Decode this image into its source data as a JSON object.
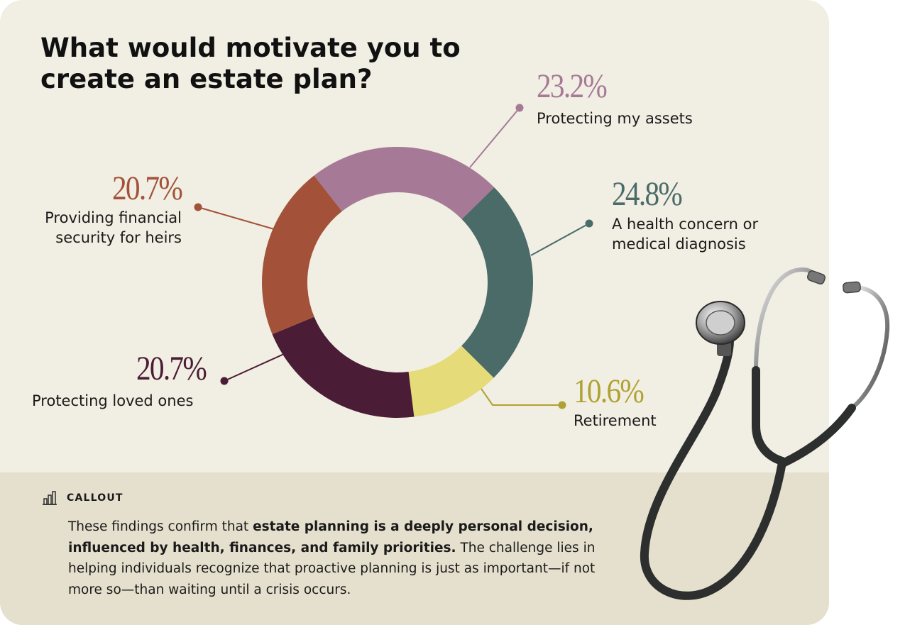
{
  "title": "What would motivate you to create an estate plan?",
  "chart_data": {
    "type": "pie",
    "title": "What would motivate you to create an estate plan?",
    "slices": [
      {
        "label": "Protecting my assets",
        "value": 23.2,
        "display": "23.2%",
        "color": "#a67a96"
      },
      {
        "label": "A health concern or medical diagnosis",
        "value": 24.8,
        "display": "24.8%",
        "color": "#4b6b68"
      },
      {
        "label": "Retirement",
        "value": 10.6,
        "display": "10.6%",
        "color": "#e6db79"
      },
      {
        "label": "Protecting loved ones",
        "value": 20.7,
        "display": "20.7%",
        "color": "#4b1c35"
      },
      {
        "label": "Providing financial security for heirs",
        "value": 20.7,
        "display": "20.7%",
        "color": "#a35239"
      }
    ],
    "label_colors": {
      "Protecting my assets": "#a67a96",
      "A health concern or medical diagnosis": "#4b6b68",
      "Retirement": "#b0a232",
      "Protecting loved ones": "#4b1c35",
      "Providing financial security for heirs": "#a35239"
    },
    "donut": true,
    "legend": "none"
  },
  "labels": {
    "assets": {
      "pct": "23.2%",
      "line1": "Protecting my assets"
    },
    "health": {
      "pct": "24.8%",
      "line1": "A health concern or",
      "line2": "medical diagnosis"
    },
    "retirement": {
      "pct": "10.6%",
      "line1": "Retirement"
    },
    "loved": {
      "pct": "20.7%",
      "line1": "Protecting loved ones"
    },
    "heirs": {
      "pct": "20.7%",
      "line1": "Providing financial",
      "line2": "security for heirs"
    }
  },
  "callout": {
    "icon": "bar-chart-icon",
    "title": "CALLOUT",
    "text_before": "These findings confirm that ",
    "text_bold": "estate planning is a deeply personal decision, influenced by health, finances, and family priorities.",
    "text_after": " The challenge lies in helping individuals recognize that proactive planning is just as important—if not more so—than waiting until a crisis occurs."
  },
  "image": {
    "icon": "stethoscope-icon"
  }
}
